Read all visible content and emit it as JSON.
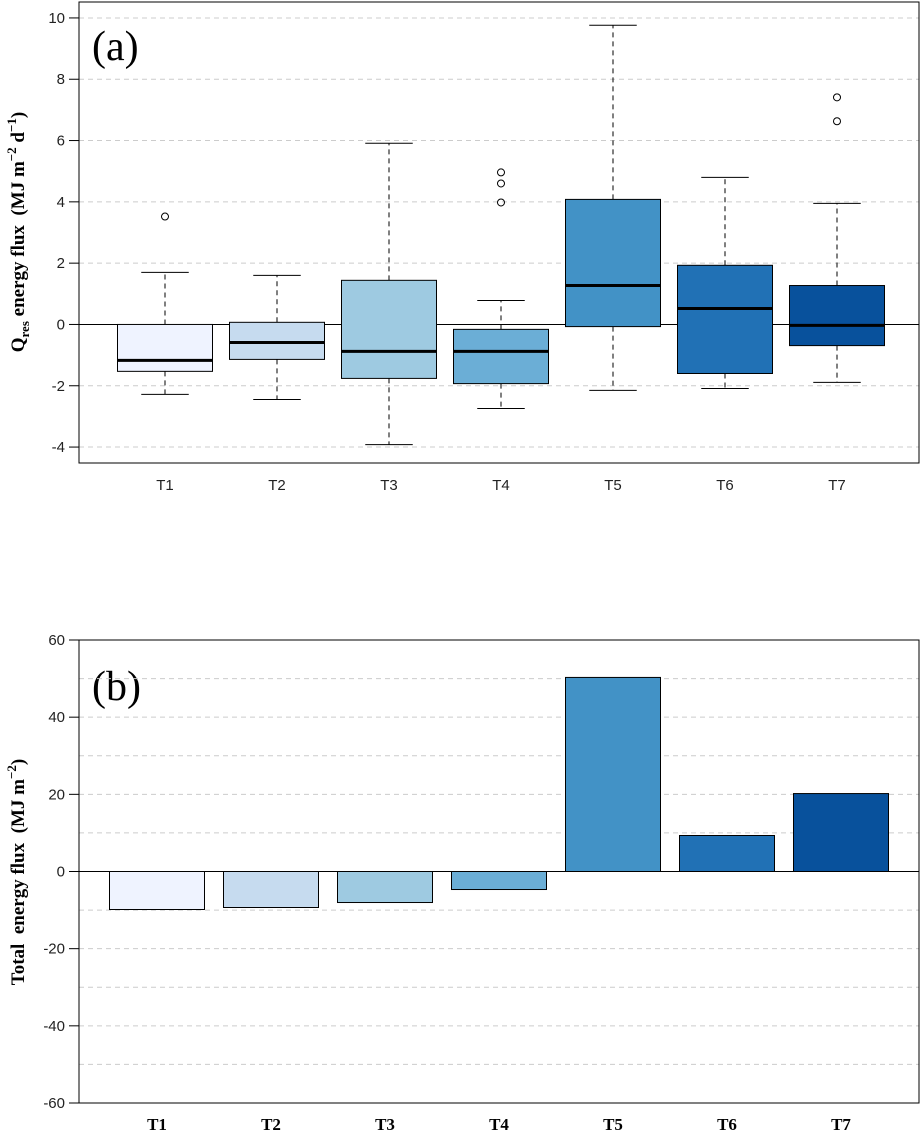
{
  "chart_data": [
    {
      "type": "box",
      "annotation": "(a)",
      "ylabel_parts": [
        "Q",
        "res",
        " energy flux  (MJ m",
        "−2",
        " d",
        "−1",
        ")"
      ],
      "categories": [
        "T1",
        "T2",
        "T3",
        "T4",
        "T5",
        "T6",
        "T7"
      ],
      "colors": [
        "#eff3ff",
        "#c6dbef",
        "#9ecae1",
        "#6baed6",
        "#4292c6",
        "#2171b5",
        "#08519c"
      ],
      "whisker_low": [
        -2.28,
        -2.45,
        -3.92,
        -2.74,
        -2.15,
        -2.09,
        -1.89
      ],
      "q1": [
        -1.53,
        -1.14,
        -1.76,
        -1.93,
        -0.07,
        -1.6,
        -0.69
      ],
      "median": [
        -1.17,
        -0.59,
        -0.88,
        -0.88,
        1.27,
        0.52,
        -0.03
      ],
      "q3": [
        0,
        0.07,
        1.44,
        -0.16,
        4.08,
        1.93,
        1.27
      ],
      "whisker_high": [
        1.7,
        1.6,
        5.91,
        0.78,
        9.76,
        4.8,
        3.95
      ],
      "outliers": [
        [
          3.52
        ],
        [],
        [],
        [
          4.96,
          4.6,
          3.98
        ],
        [],
        [],
        [
          7.41,
          6.63
        ]
      ],
      "ylim": [
        -4.52,
        10.52
      ],
      "yticks": [
        -4,
        -2,
        0,
        2,
        4,
        6,
        8,
        10
      ],
      "grid": true,
      "hline": 0
    },
    {
      "type": "bar",
      "annotation": "(b)",
      "ylabel_parts": [
        "Total  energy flux  (MJ m",
        "−2",
        ")"
      ],
      "categories": [
        "T1",
        "T2",
        "T3",
        "T4",
        "T5",
        "T6",
        "T7"
      ],
      "colors": [
        "#eff3ff",
        "#c6dbef",
        "#9ecae1",
        "#6baed6",
        "#4292c6",
        "#2171b5",
        "#08519c"
      ],
      "values": [
        -9.85,
        -9.33,
        -8.04,
        -4.67,
        50.3,
        9.33,
        20.2
      ],
      "ylim": [
        -60,
        60
      ],
      "yticks": [
        -60,
        -40,
        -20,
        0,
        20,
        40,
        60
      ],
      "grid_y": [
        -50,
        -40,
        -30,
        -20,
        -10,
        10,
        20,
        30,
        40,
        50
      ]
    }
  ]
}
